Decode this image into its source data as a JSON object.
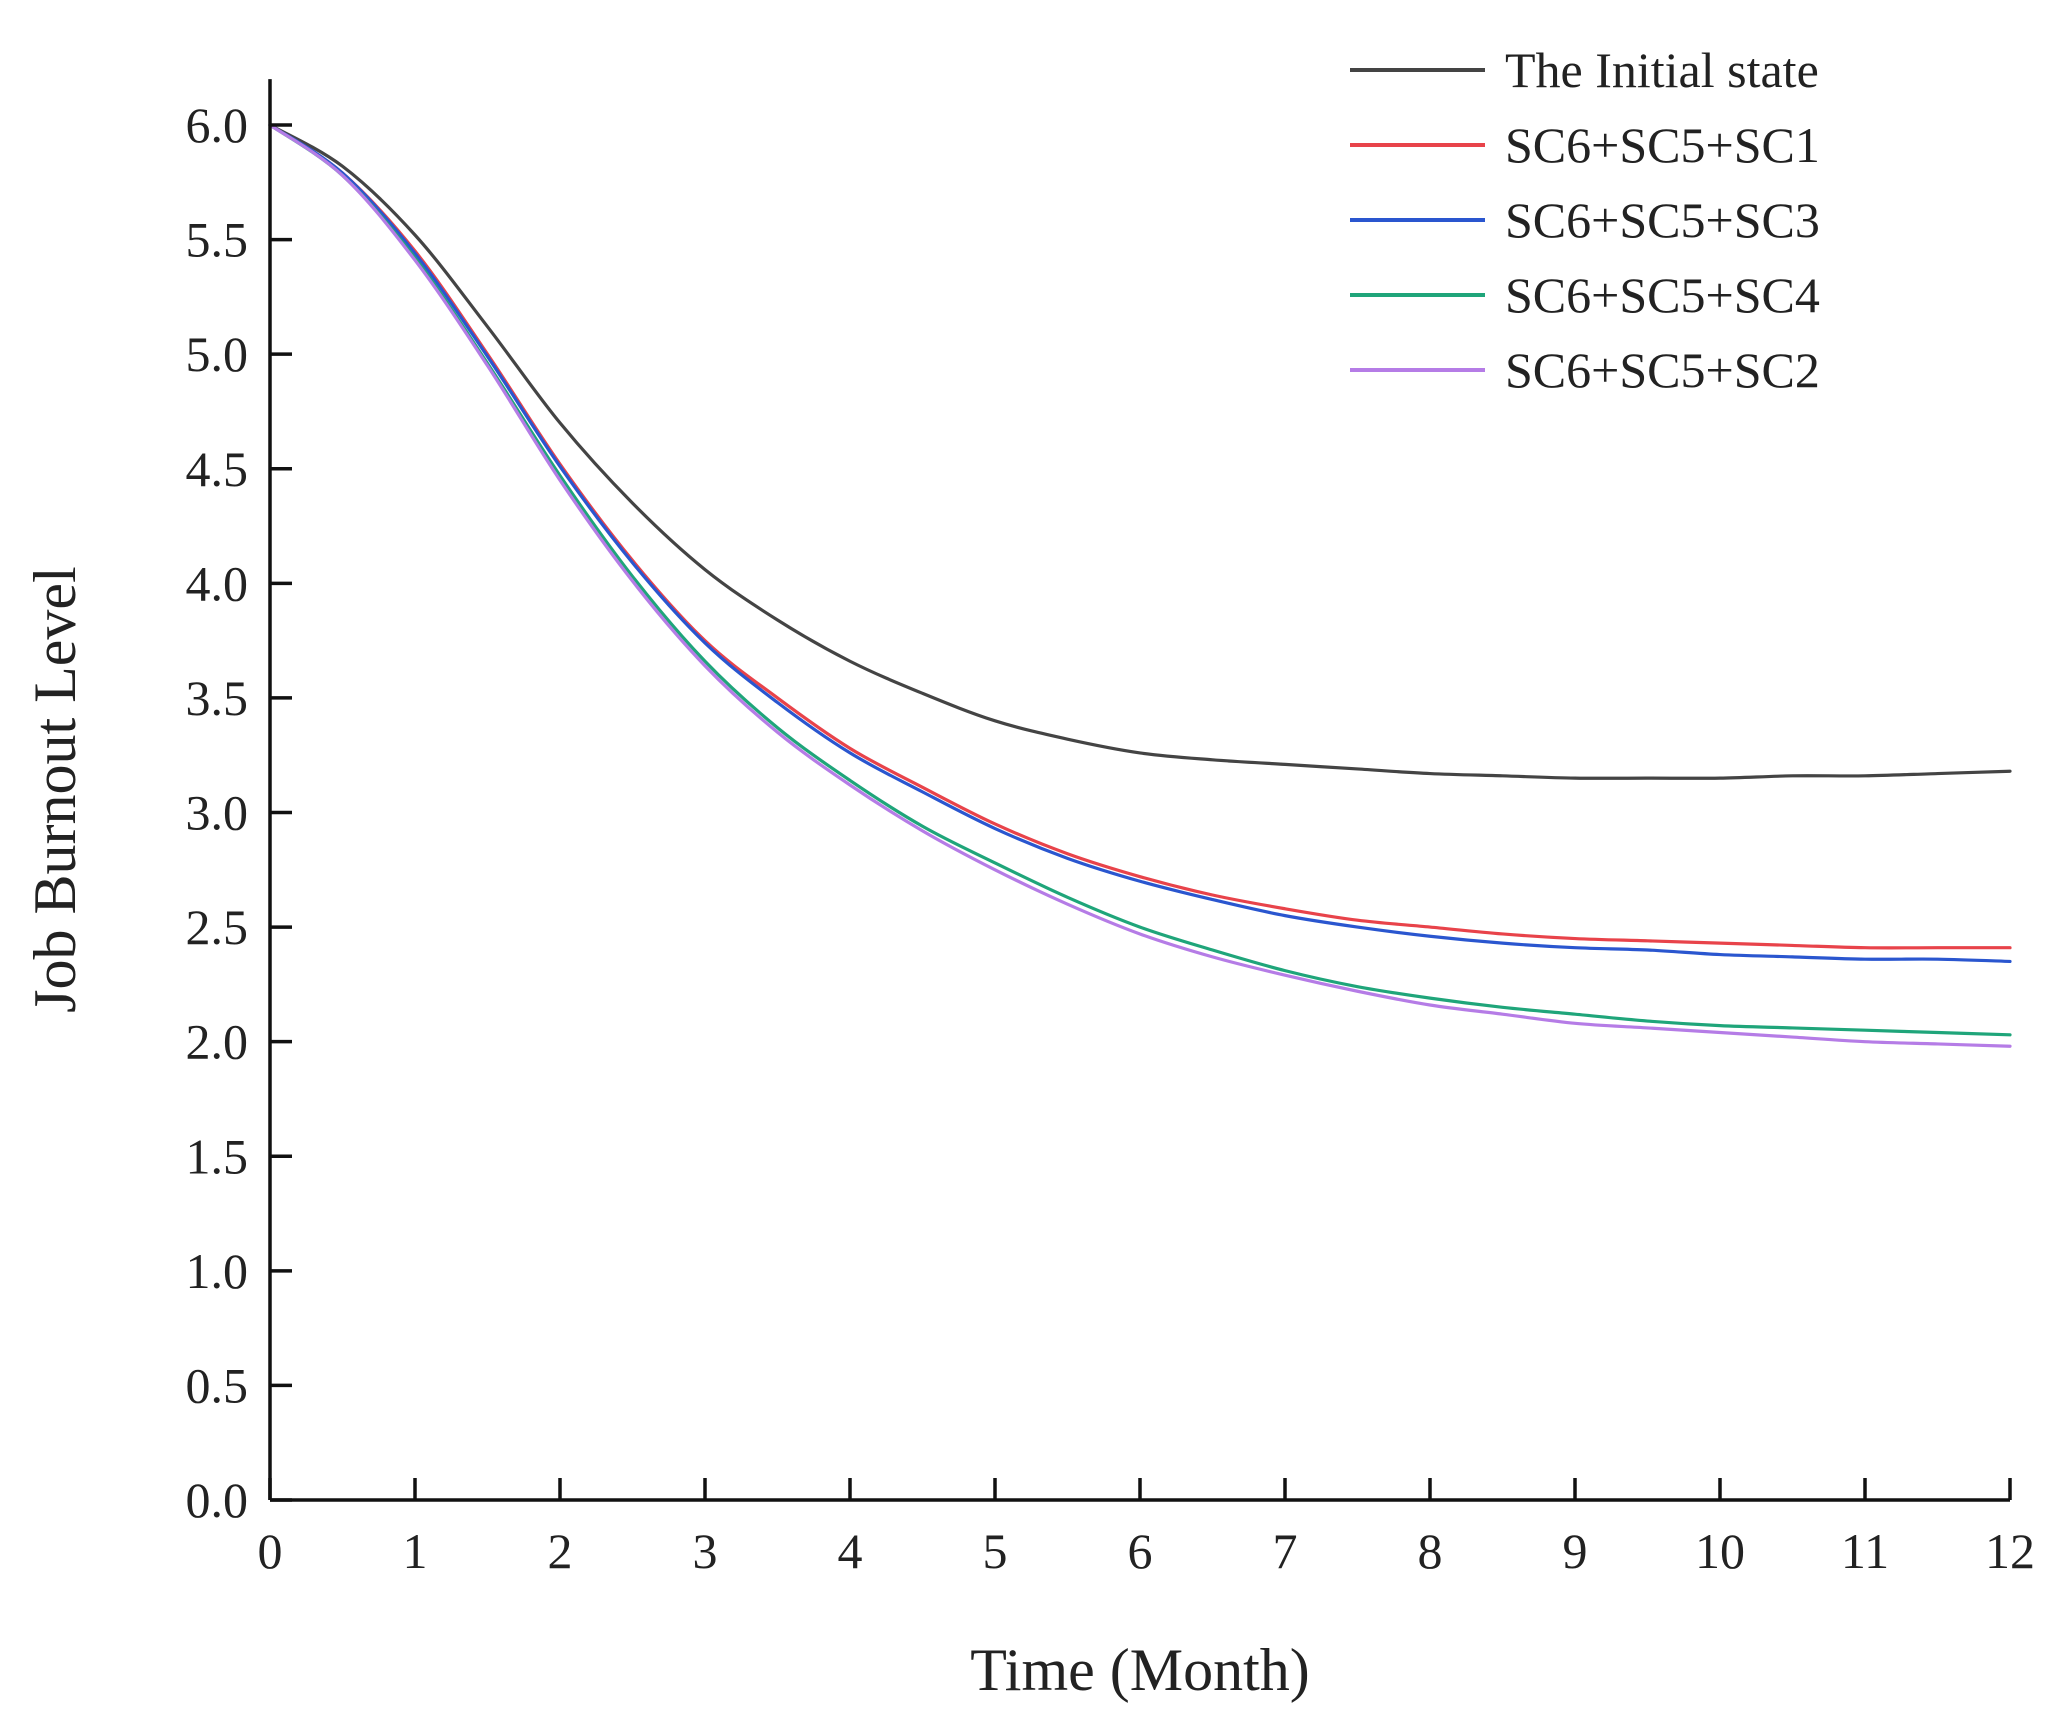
{
  "chart_data": {
    "type": "line",
    "title": "",
    "xlabel": "Time (Month)",
    "ylabel": "Job Burnout Level",
    "xlim": [
      0,
      12
    ],
    "ylim": [
      0,
      6.2
    ],
    "xticks": [
      0,
      1,
      2,
      3,
      4,
      5,
      6,
      7,
      8,
      9,
      10,
      11,
      12
    ],
    "xtick_labels": [
      "0",
      "1",
      "2",
      "3",
      "4",
      "5",
      "6",
      "7",
      "8",
      "9",
      "10",
      "11",
      "12"
    ],
    "yticks": [
      0,
      0.5,
      1,
      1.5,
      2,
      2.5,
      3,
      3.5,
      4,
      4.5,
      5,
      5.5,
      6
    ],
    "ytick_labels": [
      "0.0",
      "0.5",
      "1.0",
      "1.5",
      "2.0",
      "2.5",
      "3.0",
      "3.5",
      "4.0",
      "4.5",
      "5.0",
      "5.5",
      "6.0"
    ],
    "grid": false,
    "legend_position": "top-right",
    "x": [
      0,
      0.5,
      1,
      1.5,
      2,
      2.5,
      3,
      3.5,
      4,
      4.5,
      5,
      5.5,
      6,
      6.5,
      7,
      7.5,
      8,
      8.5,
      9,
      9.5,
      10,
      10.5,
      11,
      11.5,
      12
    ],
    "series": [
      {
        "name": "The Initial state",
        "color": "#444444",
        "values": [
          6.0,
          5.82,
          5.52,
          5.12,
          4.7,
          4.35,
          4.06,
          3.84,
          3.66,
          3.52,
          3.4,
          3.32,
          3.26,
          3.23,
          3.21,
          3.19,
          3.17,
          3.16,
          3.15,
          3.15,
          3.15,
          3.16,
          3.16,
          3.17,
          3.18
        ]
      },
      {
        "name": "SC6+SC5+SC1",
        "color": "#e8434a",
        "values": [
          6.0,
          5.79,
          5.45,
          5.0,
          4.52,
          4.1,
          3.75,
          3.5,
          3.28,
          3.11,
          2.95,
          2.82,
          2.72,
          2.64,
          2.58,
          2.53,
          2.5,
          2.47,
          2.45,
          2.44,
          2.43,
          2.42,
          2.41,
          2.41,
          2.41
        ]
      },
      {
        "name": "SC6+SC5+SC3",
        "color": "#2a56cf",
        "values": [
          6.0,
          5.79,
          5.44,
          4.99,
          4.51,
          4.09,
          3.74,
          3.48,
          3.26,
          3.09,
          2.93,
          2.8,
          2.7,
          2.62,
          2.55,
          2.5,
          2.46,
          2.43,
          2.41,
          2.4,
          2.38,
          2.37,
          2.36,
          2.36,
          2.35
        ]
      },
      {
        "name": "SC6+SC5+SC4",
        "color": "#1fa57a",
        "values": [
          6.0,
          5.78,
          5.42,
          4.96,
          4.47,
          4.03,
          3.66,
          3.37,
          3.14,
          2.94,
          2.78,
          2.63,
          2.5,
          2.4,
          2.31,
          2.24,
          2.19,
          2.15,
          2.12,
          2.09,
          2.07,
          2.06,
          2.05,
          2.04,
          2.03
        ]
      },
      {
        "name": "SC6+SC5+SC2",
        "color": "#b57ce6",
        "values": [
          6.0,
          5.78,
          5.41,
          4.95,
          4.45,
          4.01,
          3.64,
          3.35,
          3.12,
          2.92,
          2.75,
          2.6,
          2.47,
          2.37,
          2.29,
          2.22,
          2.16,
          2.12,
          2.08,
          2.06,
          2.04,
          2.02,
          2.0,
          1.99,
          1.98
        ]
      }
    ]
  }
}
